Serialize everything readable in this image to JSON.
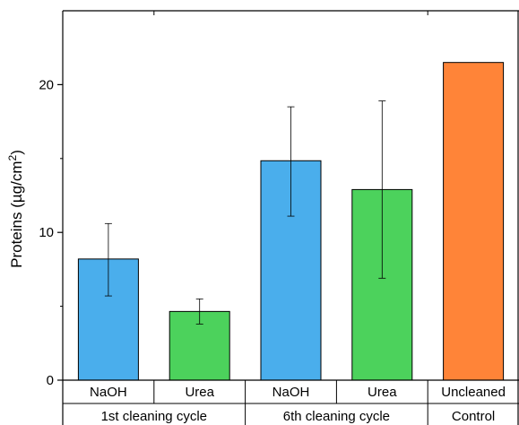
{
  "chart_data": {
    "type": "bar",
    "ylabel": "Proteins (µg/cm²)",
    "ylim": [
      0,
      25
    ],
    "yticks_major": [
      0,
      10,
      20
    ],
    "yticks_minor": [
      5,
      15
    ],
    "categories": [
      "NaOH",
      "Urea",
      "NaOH",
      "Urea",
      "Uncleaned"
    ],
    "groups": [
      {
        "label": "1st cleaning cycle",
        "span": [
          0,
          1
        ]
      },
      {
        "label": "6th cleaning cycle",
        "span": [
          2,
          3
        ]
      },
      {
        "label": "Control",
        "span": [
          4,
          4
        ]
      }
    ],
    "values": [
      8.2,
      4.65,
      14.85,
      12.9,
      21.5
    ],
    "error_low": [
      5.7,
      3.8,
      11.1,
      6.9,
      null
    ],
    "error_high": [
      10.6,
      5.5,
      18.5,
      18.9,
      null
    ],
    "colors": [
      "#4aaeec",
      "#4cd25c",
      "#4aaeec",
      "#4cd25c",
      "#ff8438"
    ],
    "grid": false
  }
}
